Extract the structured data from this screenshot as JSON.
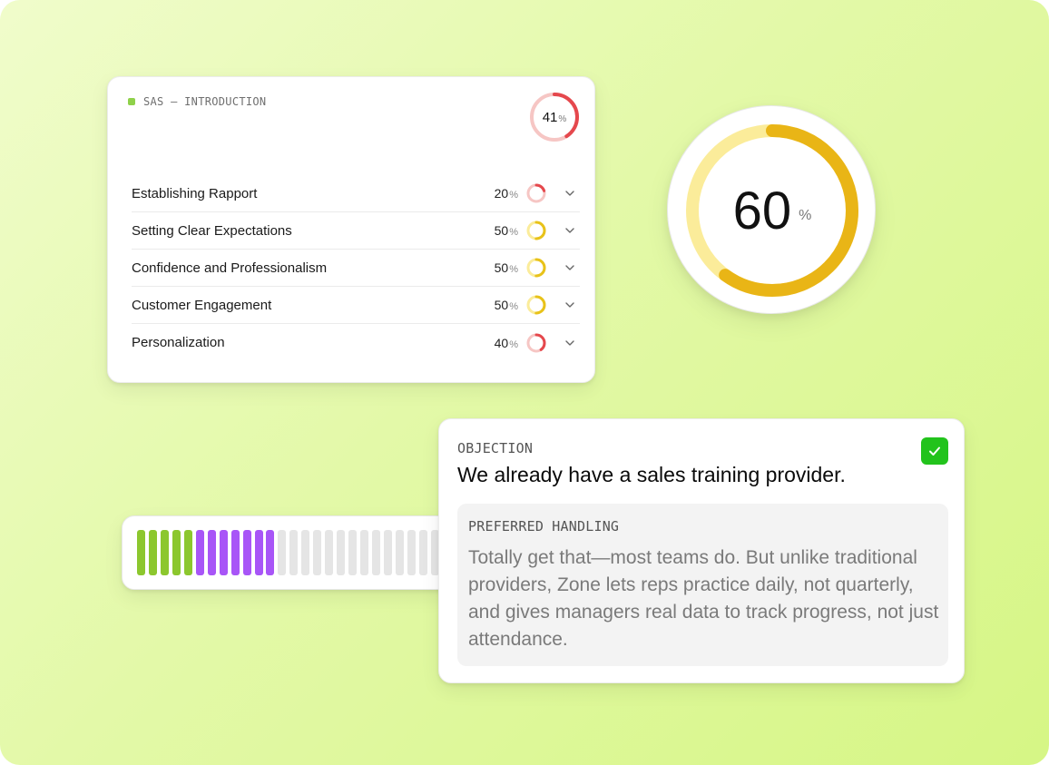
{
  "score_card": {
    "section_label": "SAS — INTRODUCTION",
    "total_score": 41,
    "percent_symbol": "%",
    "rows": [
      {
        "name": "Establishing Rapport",
        "score": 20,
        "color": "#e5484d"
      },
      {
        "name": "Setting Clear Expectations",
        "score": 50,
        "color": "#e8c21a"
      },
      {
        "name": "Confidence and Professionalism",
        "score": 50,
        "color": "#e8c21a"
      },
      {
        "name": "Customer Engagement",
        "score": 50,
        "color": "#e8c21a"
      },
      {
        "name": "Personalization",
        "score": 40,
        "color": "#e5484d"
      }
    ],
    "row_icon": "chevron-down-icon",
    "accent_dot_color": "#8fd14a"
  },
  "big_gauge": {
    "value": 60,
    "percent_symbol": "%",
    "color": "#e9b516",
    "track_color": "#fbec9a"
  },
  "bar_meter": {
    "segments": [
      "green",
      "green",
      "green",
      "green",
      "green",
      "purple",
      "purple",
      "purple",
      "purple",
      "purple",
      "purple",
      "purple",
      "empty",
      "empty",
      "empty",
      "empty",
      "empty",
      "empty",
      "empty",
      "empty",
      "empty",
      "empty",
      "empty",
      "empty",
      "empty",
      "empty",
      "empty"
    ],
    "colors": {
      "green": "#8cc72e",
      "purple": "#a855f7",
      "empty": "#e5e5e5"
    }
  },
  "objection": {
    "label": "OBJECTION",
    "title": "We already have a sales training provider.",
    "checked": true,
    "check_icon": "checkmark-icon",
    "handling_label": "PREFERRED HANDLING",
    "handling_text": "Totally get that—most teams do. But unlike traditional providers, Zone lets reps practice daily, not quarterly, and gives managers real data to track progress, not just attendance."
  }
}
